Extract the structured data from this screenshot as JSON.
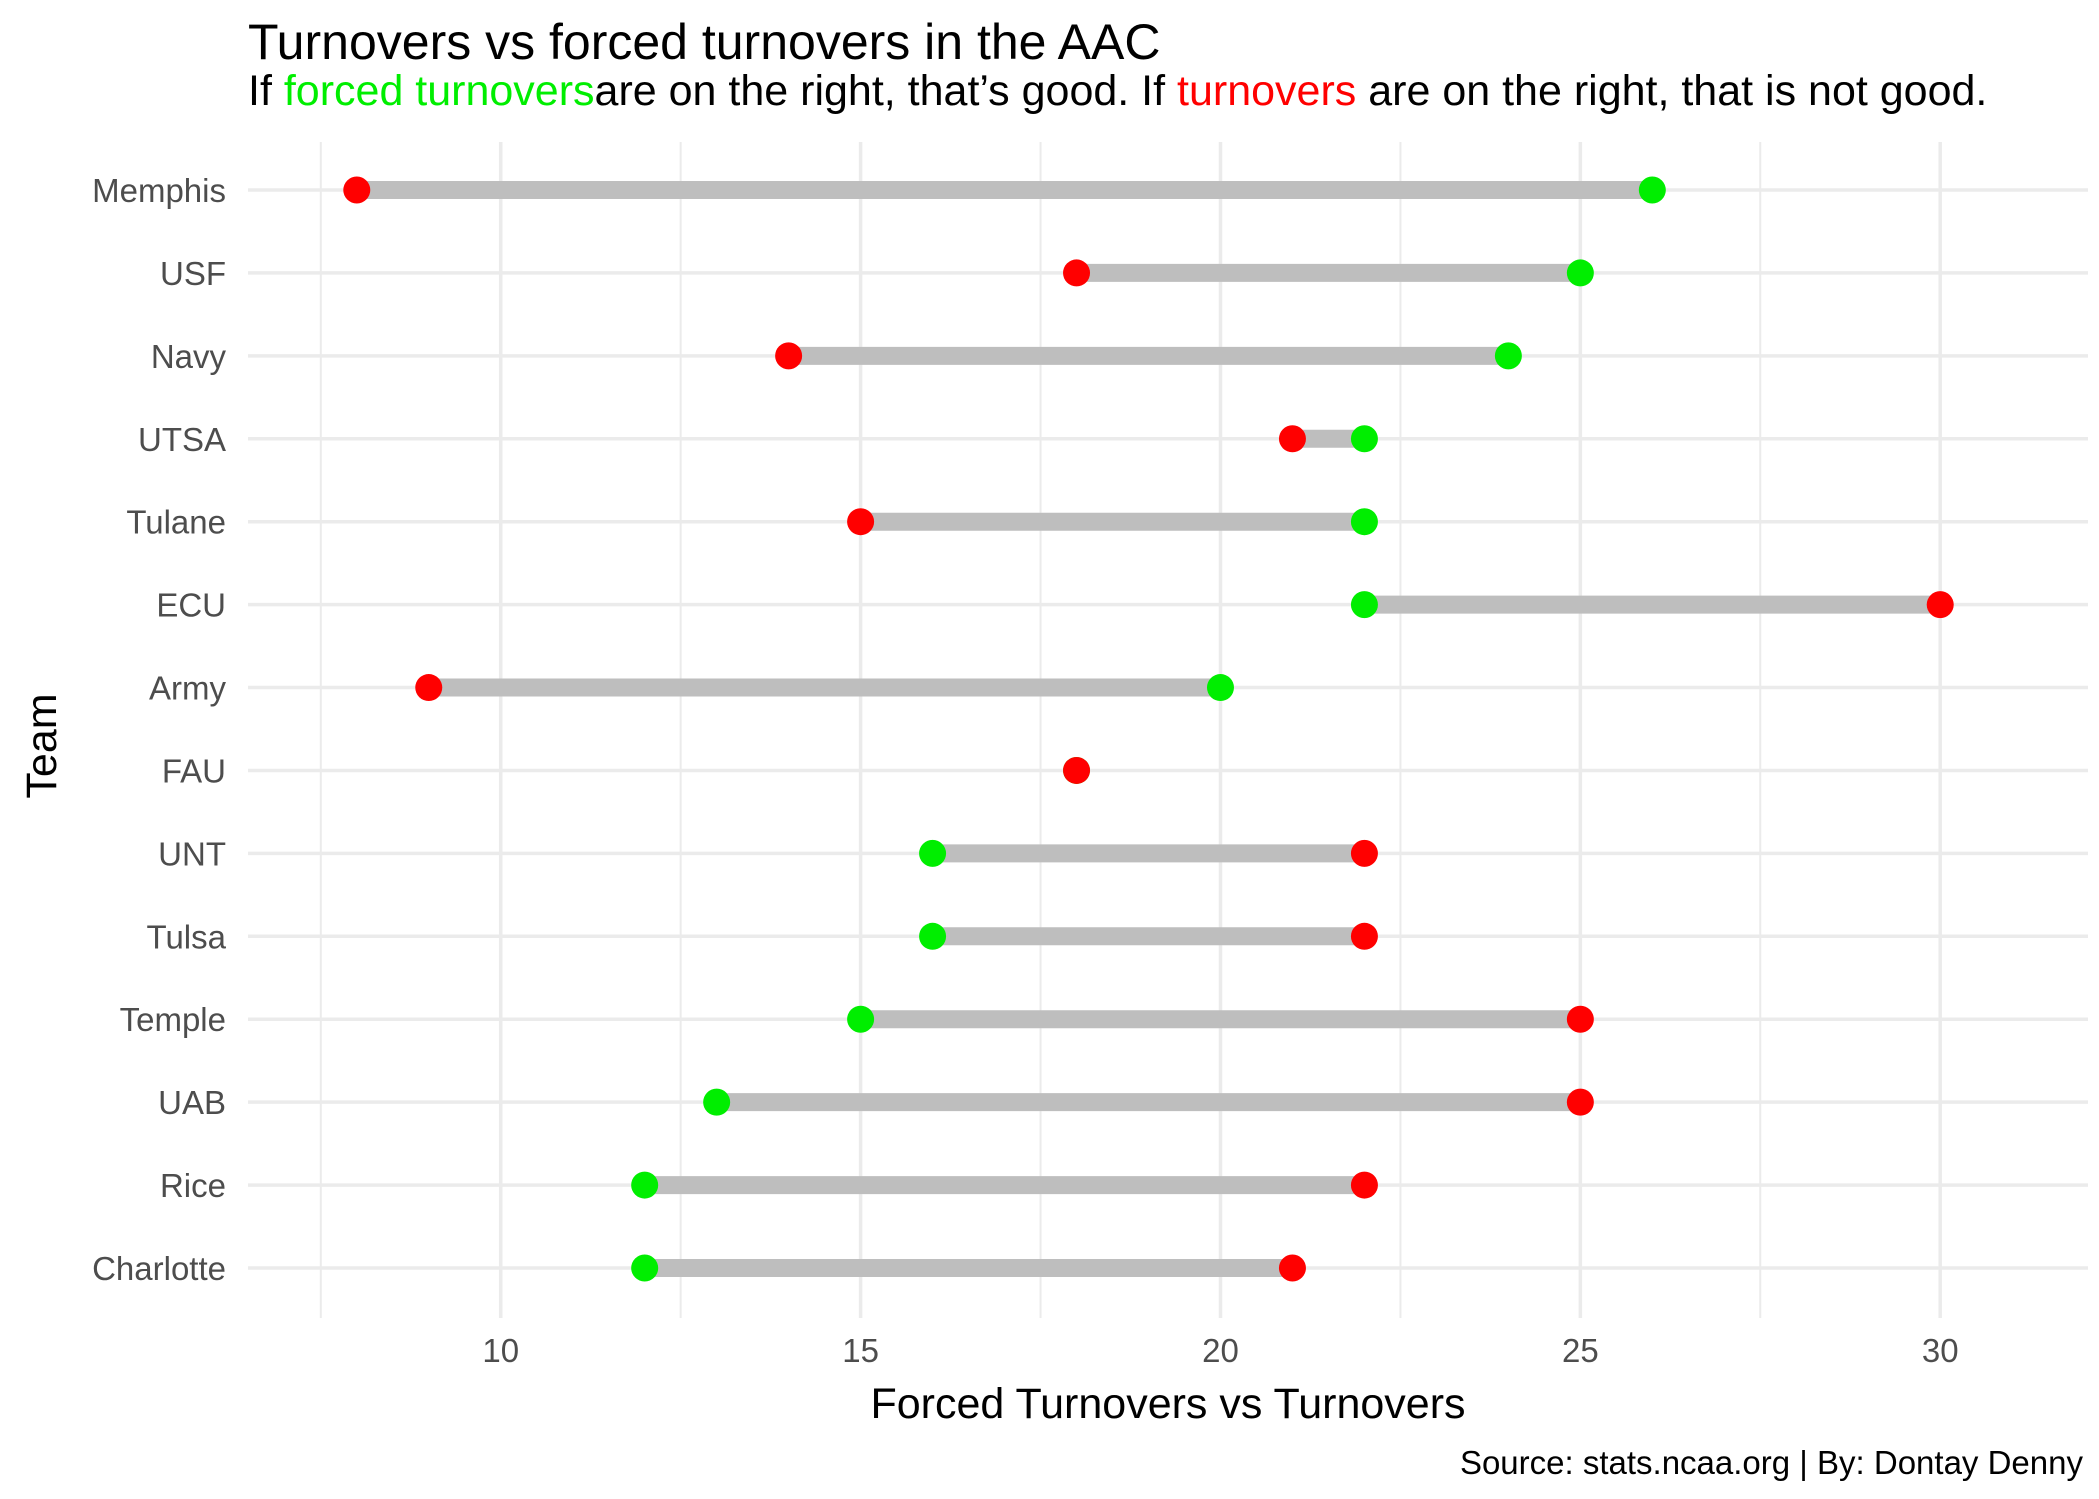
{
  "chart_data": {
    "type": "dumbbell",
    "title": "Turnovers vs forced turnovers in the AAC",
    "subtitle": {
      "part1": "If ",
      "forced_label": "forced turnovers",
      "part2": "are on the right, that’s good. If ",
      "turnovers_label": "turnovers",
      "part3": " are on the right, that is not good."
    },
    "xlabel": "Forced Turnovers vs Turnovers",
    "ylabel": "Team",
    "caption": "Source: stats.ncaa.org | By: Dontay Denny",
    "xlim": [
      7.1,
      30.9
    ],
    "xticks": [
      10,
      15,
      20,
      25,
      30
    ],
    "grid": true,
    "colors": {
      "forced_turnovers": "#00ee00",
      "turnovers": "#ff0000",
      "segment": "#bebebe",
      "grid": "#ebebeb"
    },
    "teams": [
      {
        "team": "Memphis",
        "turnovers": 8,
        "forced_turnovers": 26
      },
      {
        "team": "USF",
        "turnovers": 18,
        "forced_turnovers": 25
      },
      {
        "team": "Navy",
        "turnovers": 14,
        "forced_turnovers": 24
      },
      {
        "team": "UTSA",
        "turnovers": 21,
        "forced_turnovers": 22
      },
      {
        "team": "Tulane",
        "turnovers": 15,
        "forced_turnovers": 22
      },
      {
        "team": "ECU",
        "turnovers": 30,
        "forced_turnovers": 22
      },
      {
        "team": "Army",
        "turnovers": 9,
        "forced_turnovers": 20
      },
      {
        "team": "FAU",
        "turnovers": 18,
        "forced_turnovers": 18
      },
      {
        "team": "UNT",
        "turnovers": 22,
        "forced_turnovers": 16
      },
      {
        "team": "Tulsa",
        "turnovers": 22,
        "forced_turnovers": 16
      },
      {
        "team": "Temple",
        "turnovers": 25,
        "forced_turnovers": 15
      },
      {
        "team": "UAB",
        "turnovers": 25,
        "forced_turnovers": 13
      },
      {
        "team": "Rice",
        "turnovers": 22,
        "forced_turnovers": 12
      },
      {
        "team": "Charlotte",
        "turnovers": 21,
        "forced_turnovers": 12
      }
    ]
  }
}
